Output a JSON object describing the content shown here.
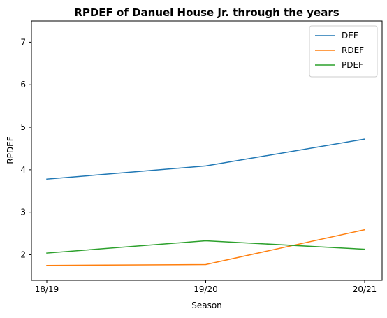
{
  "chart_data": {
    "type": "line",
    "title": "RPDEF of Danuel House Jr. through the years",
    "xlabel": "Season",
    "ylabel": "RPDEF",
    "categories": [
      "18/19",
      "19/20",
      "20/21"
    ],
    "ylim": [
      1.4,
      7.5
    ],
    "yticks": [
      2,
      3,
      4,
      5,
      6,
      7
    ],
    "grid": false,
    "legend_position": "top-right",
    "series": [
      {
        "name": "DEF",
        "color": "#1f77b4",
        "values": [
          3.78,
          4.09,
          4.72
        ]
      },
      {
        "name": "RDEF",
        "color": "#ff7f0e",
        "values": [
          1.75,
          1.77,
          2.59
        ]
      },
      {
        "name": "PDEF",
        "color": "#2ca02c",
        "values": [
          2.04,
          2.33,
          2.13
        ]
      }
    ]
  }
}
